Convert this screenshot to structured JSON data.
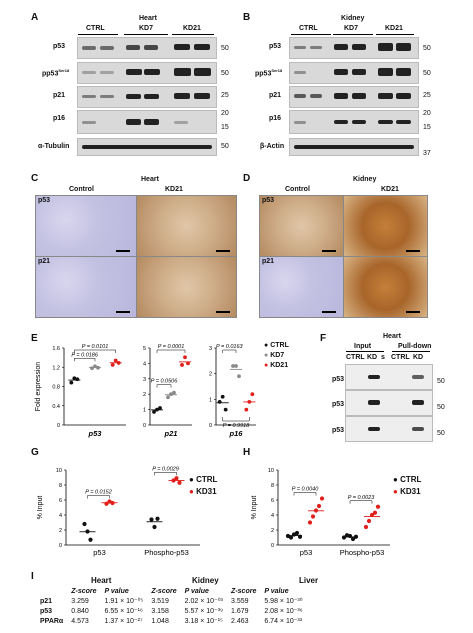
{
  "panels": {
    "A": {
      "letter": "A",
      "title": "Heart",
      "groups": [
        "CTRL",
        "KD7",
        "KD21"
      ],
      "rows": [
        {
          "label": "p53",
          "sup": "",
          "mw": [
            "50"
          ]
        },
        {
          "label": "pp53",
          "sup": "Ser18",
          "mw": [
            "50"
          ]
        },
        {
          "label": "p21",
          "sup": "",
          "mw": [
            "25"
          ]
        },
        {
          "label": "p16",
          "sup": "",
          "mw": [
            "20",
            "15"
          ]
        },
        {
          "label": "α-Tubulin",
          "sup": "",
          "mw": [
            "50"
          ]
        }
      ]
    },
    "B": {
      "letter": "B",
      "title": "Kidney",
      "groups": [
        "CTRL",
        "KD7",
        "KD21"
      ],
      "rows": [
        {
          "label": "p53",
          "sup": "",
          "mw": [
            "50"
          ]
        },
        {
          "label": "pp53",
          "sup": "Ser18",
          "mw": [
            "50"
          ]
        },
        {
          "label": "p21",
          "sup": "",
          "mw": [
            "25"
          ]
        },
        {
          "label": "p16",
          "sup": "",
          "mw": [
            "20",
            "15"
          ]
        },
        {
          "label": "β-Actin",
          "sup": "",
          "mw": [
            "37"
          ]
        }
      ]
    },
    "C": {
      "letter": "C",
      "title": "Heart",
      "cols": [
        "Control",
        "KD21"
      ],
      "rows": [
        "p53",
        "p21"
      ]
    },
    "D": {
      "letter": "D",
      "title": "Kidney",
      "cols": [
        "Control",
        "KD21"
      ],
      "rows": [
        "p53",
        "p21"
      ]
    },
    "F": {
      "letter": "F",
      "title": "Heart",
      "groups": [
        "Input",
        "Pull-down"
      ],
      "lanes": [
        "CTRL",
        "KD",
        "s",
        "CTRL",
        "KD"
      ],
      "rows": [
        {
          "label": "p53",
          "mw": "50"
        },
        {
          "label": "p53",
          "mw": "50"
        },
        {
          "label": "p53",
          "mw": "50"
        }
      ]
    },
    "I": {
      "letter": "I",
      "tissues": [
        "Heart",
        "Kidney",
        "Liver"
      ],
      "headers": [
        "Z-score",
        "P value",
        "Z-score",
        "P value",
        "Z-score",
        "P value"
      ],
      "rows": [
        {
          "gene": "p21",
          "cells": [
            "3.259",
            "1.91 × 10⁻⁰⁵",
            "3.519",
            "2.02 × 10⁻⁰³",
            "3.559",
            "5.98 × 10⁻³⁰"
          ]
        },
        {
          "gene": "p53",
          "cells": [
            "0.840",
            "6.55 × 10⁻¹⁶",
            "3.158",
            "5.57 × 10⁻³⁹",
            "1.679",
            "2.08 × 10⁻³⁶"
          ]
        },
        {
          "gene": "PPARα",
          "cells": [
            "4.573",
            "1.37 × 10⁻²⁷",
            "1.048",
            "3.18 × 10⁻¹⁵",
            "2.463",
            "6.74 × 10⁻³³"
          ]
        }
      ]
    }
  },
  "chart_data": [
    {
      "panel": "E",
      "type": "scatter",
      "subtitle": "p53",
      "ylabel": "Fold expression",
      "ylim": [
        0,
        1.6
      ],
      "yticks": [
        0,
        0.4,
        0.8,
        1.2,
        1.6
      ],
      "groups": [
        "CTRL",
        "KD7",
        "KD21"
      ],
      "colors": [
        "#111111",
        "#8a8a8a",
        "#e0201b"
      ],
      "points": [
        [
          0.88,
          0.97,
          0.95
        ],
        [
          1.18,
          1.22,
          1.19
        ],
        [
          1.25,
          1.34,
          1.29
        ]
      ],
      "pvals": [
        {
          "text": "P = 0.0101",
          "from": 0,
          "to": 2,
          "level": 1
        },
        {
          "text": "P = 0.0186",
          "from": 0,
          "to": 1,
          "level": 0
        }
      ]
    },
    {
      "panel": "E",
      "type": "scatter",
      "subtitle": "p21",
      "ylim": [
        0,
        5
      ],
      "yticks": [
        0,
        1,
        2,
        3,
        4,
        5
      ],
      "groups": [
        "CTRL",
        "KD7",
        "KD21"
      ],
      "colors": [
        "#111111",
        "#8a8a8a",
        "#e0201b"
      ],
      "points": [
        [
          0.85,
          1.0,
          1.1
        ],
        [
          1.8,
          2.0,
          2.1
        ],
        [
          3.9,
          4.4,
          4.0
        ]
      ],
      "pvals": [
        {
          "text": "P = 0.0001",
          "from": 0,
          "to": 2,
          "level": 1
        },
        {
          "text": "P = 0.0506",
          "from": 0,
          "to": 1,
          "level": 0
        }
      ]
    },
    {
      "panel": "E",
      "type": "scatter",
      "subtitle": "p16",
      "ylim": [
        0,
        3
      ],
      "yticks": [
        0,
        1,
        2,
        3
      ],
      "groups": [
        "CTRL",
        "KD7",
        "KD21"
      ],
      "colors": [
        "#111111",
        "#8a8a8a",
        "#e0201b"
      ],
      "points": [
        [
          0.9,
          1.1,
          0.6
        ],
        [
          2.3,
          2.3,
          1.9
        ],
        [
          0.6,
          0.9,
          1.2
        ]
      ],
      "pvals": [
        {
          "text": "P = 0.0163",
          "from": 0,
          "to": 1,
          "level": 1
        },
        {
          "text": "P = 0.9918",
          "from": 0,
          "to": 2,
          "level": -1
        }
      ]
    },
    {
      "panel": "G",
      "type": "scatter",
      "ylabel": "% Input",
      "categories": [
        "p53",
        "Phospho-p53"
      ],
      "series": [
        {
          "name": "CTRL",
          "color": "#111111",
          "values": [
            [
              2.8,
              1.8,
              0.7
            ],
            [
              3.4,
              2.4,
              3.5
            ]
          ]
        },
        {
          "name": "KD31",
          "color": "#e0201b",
          "values": [
            [
              5.5,
              5.8,
              5.6
            ],
            [
              8.6,
              8.9,
              8.3
            ]
          ]
        }
      ],
      "ylim": [
        0,
        10
      ],
      "yticks": [
        0,
        2,
        4,
        6,
        8,
        10
      ],
      "pvals": [
        {
          "text": "P = 0.0152",
          "cat": 0
        },
        {
          "text": "P = 0.0029",
          "cat": 1
        }
      ]
    },
    {
      "panel": "H",
      "type": "scatter",
      "ylabel": "% Input",
      "categories": [
        "p53",
        "Phospho-p53"
      ],
      "series": [
        {
          "name": "CTRL",
          "color": "#111111",
          "values": [
            [
              1.2,
              1.0,
              1.4,
              1.6,
              1.1
            ],
            [
              1.0,
              1.3,
              1.2,
              0.8,
              1.1
            ]
          ]
        },
        {
          "name": "KD31",
          "color": "#e0201b",
          "values": [
            [
              3.0,
              3.8,
              4.6,
              5.2,
              6.2
            ],
            [
              2.4,
              3.2,
              4.0,
              4.3,
              5.1
            ]
          ]
        }
      ],
      "ylim": [
        0,
        10
      ],
      "yticks": [
        0,
        2,
        4,
        6,
        8,
        10
      ],
      "pvals": [
        {
          "text": "P = 0.0040",
          "cat": 0
        },
        {
          "text": "P = 0.0023",
          "cat": 1
        }
      ]
    }
  ],
  "legendE": [
    "CTRL",
    "KD7",
    "KD21"
  ],
  "legendGH": [
    "CTRL",
    "KD31"
  ]
}
